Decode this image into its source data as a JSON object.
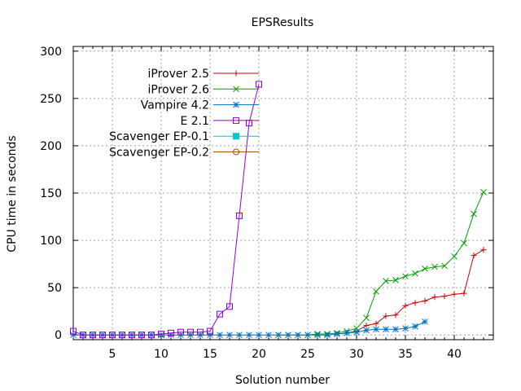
{
  "chart_data": {
    "type": "line",
    "title": "EPSResults",
    "xlabel": "Solution number",
    "ylabel": "CPU time in seconds",
    "xlim": [
      1,
      44
    ],
    "ylim": [
      -5,
      305
    ],
    "x_ticks": [
      5,
      10,
      15,
      20,
      25,
      30,
      35,
      40
    ],
    "y_ticks": [
      0,
      50,
      100,
      150,
      200,
      250,
      300
    ],
    "grid": true,
    "legend_position": "top-left",
    "series": [
      {
        "name": "iProver 2.5",
        "color": "#cc0000",
        "marker": "plus",
        "x": [
          28,
          29,
          30,
          31,
          32,
          33,
          34,
          35,
          36,
          37,
          38,
          39,
          40,
          41,
          42,
          43
        ],
        "y": [
          1,
          2,
          4,
          10,
          12,
          20,
          21,
          31,
          34,
          36,
          40,
          41,
          43,
          44,
          84,
          90
        ]
      },
      {
        "name": "iProver 2.6",
        "color": "#00a000",
        "marker": "cross",
        "x": [
          22,
          23,
          24,
          25,
          26,
          27,
          28,
          29,
          30,
          31,
          32,
          33,
          34,
          35,
          36,
          37,
          38,
          39,
          40,
          41,
          42,
          43
        ],
        "y": [
          0,
          0,
          0,
          0,
          1,
          1,
          2,
          4,
          7,
          18,
          46,
          57,
          58,
          62,
          65,
          70,
          72,
          73,
          83,
          97,
          128,
          151
        ]
      },
      {
        "name": "Vampire 4.2",
        "color": "#0070c0",
        "marker": "star",
        "x": [
          1,
          2,
          3,
          4,
          5,
          6,
          7,
          8,
          9,
          10,
          11,
          12,
          13,
          14,
          15,
          16,
          17,
          18,
          19,
          20,
          21,
          22,
          23,
          24,
          25,
          26,
          27,
          28,
          29,
          30,
          31,
          32,
          33,
          34,
          35,
          36,
          37
        ],
        "y": [
          0,
          0,
          0,
          0,
          0,
          0,
          0,
          0,
          0,
          0,
          0,
          0,
          0,
          0,
          0,
          0,
          0,
          0,
          0,
          0,
          0,
          0,
          0,
          0,
          0,
          0,
          0,
          1,
          2,
          3,
          5,
          6,
          6,
          6,
          7,
          9,
          14
        ]
      },
      {
        "name": "E 2.1",
        "color": "#9400d3",
        "marker": "square",
        "x": [
          1,
          2,
          3,
          4,
          5,
          6,
          7,
          8,
          9,
          10,
          11,
          12,
          13,
          14,
          15,
          16,
          17,
          18,
          19,
          20
        ],
        "y": [
          4,
          0,
          0,
          0,
          0,
          0,
          0,
          0,
          0,
          1,
          2,
          3,
          3,
          3,
          4,
          22,
          30,
          126,
          224,
          265
        ]
      },
      {
        "name": "Scavenger EP-0.1",
        "color": "#00c8c8",
        "marker": "filled-square",
        "x": [],
        "y": []
      },
      {
        "name": "Scavenger EP-0.2",
        "color": "#a05000",
        "marker": "circle",
        "x": [],
        "y": []
      }
    ]
  }
}
